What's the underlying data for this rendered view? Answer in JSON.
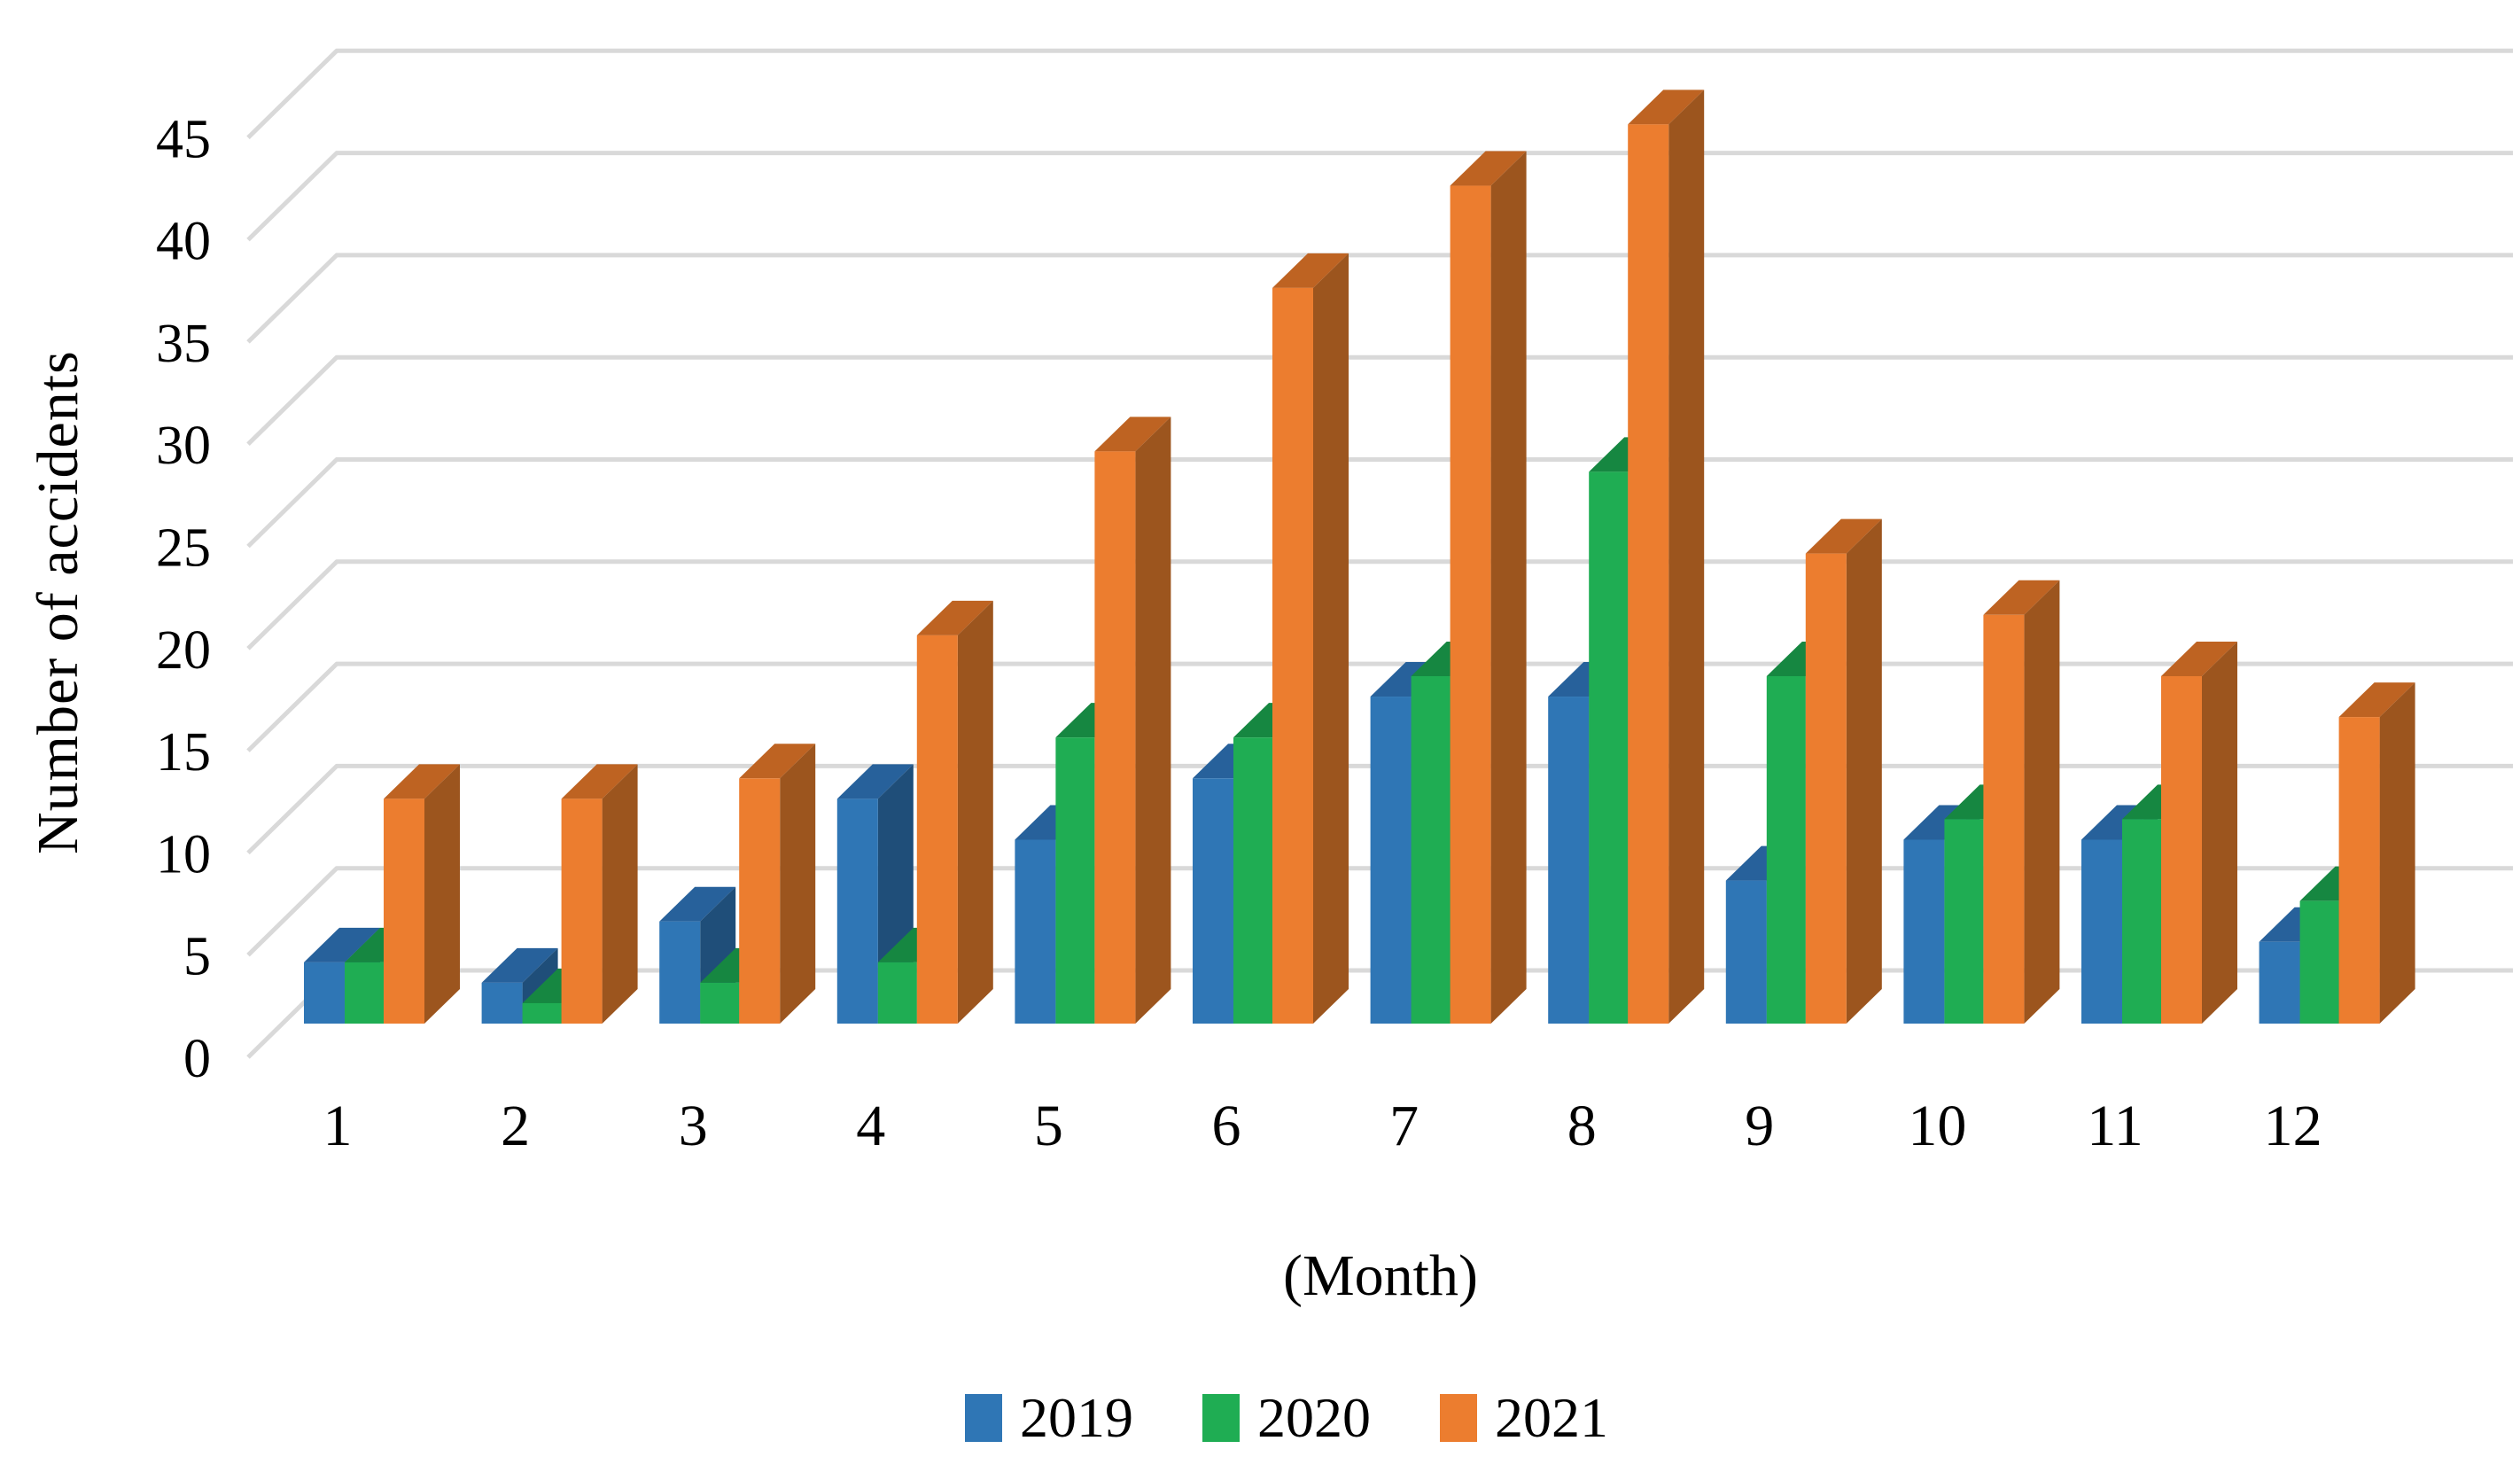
{
  "chart_data": {
    "type": "bar",
    "variant": "3d-clustered-column",
    "title": "",
    "categories": [
      "1",
      "2",
      "3",
      "4",
      "5",
      "6",
      "7",
      "8",
      "9",
      "10",
      "11",
      "12"
    ],
    "series": [
      {
        "name": "2019",
        "values": [
          3,
          2,
          5,
          11,
          9,
          12,
          16,
          16,
          7,
          9,
          9,
          4
        ],
        "colors": {
          "front": "#2F76B5",
          "top": "#27619B",
          "side": "#1F4E79"
        }
      },
      {
        "name": "2020",
        "values": [
          3,
          1,
          2,
          3,
          14,
          14,
          17,
          27,
          17,
          10,
          10,
          6
        ],
        "colors": {
          "front": "#1FAD53",
          "top": "#168741",
          "side": "#0F6C33"
        }
      },
      {
        "name": "2021",
        "values": [
          11,
          11,
          12,
          19,
          28,
          36,
          41,
          44,
          23,
          20,
          17,
          15
        ],
        "colors": {
          "front": "#EC7D2F",
          "top": "#BE6322",
          "side": "#9C551E"
        }
      }
    ],
    "ylabel": "Number of accidents",
    "xlabel": "(Month)",
    "ylim": [
      0,
      45
    ],
    "ytick_step": 5,
    "ytick_labels": [
      "0",
      "5",
      "10",
      "15",
      "20",
      "25",
      "30",
      "35",
      "40",
      "45"
    ],
    "grid": true,
    "gridline_color": "#D9D9D9",
    "text_color": "#000000",
    "background_color": "#FFFFFF",
    "legend_position": "bottom",
    "legend_marker": "square"
  }
}
